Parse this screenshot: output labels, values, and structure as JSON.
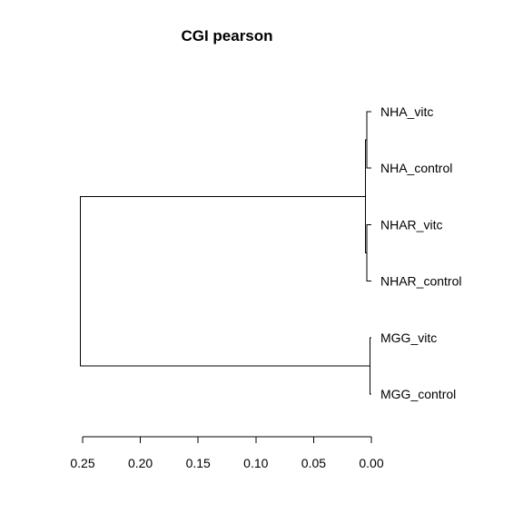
{
  "chart_data": {
    "type": "dendrogram",
    "title": "CGI pearson",
    "orientation": "horizontal",
    "x_axis": {
      "ticks": [
        0.25,
        0.2,
        0.15,
        0.1,
        0.05,
        0.0
      ],
      "tick_labels": [
        "0.25",
        "0.20",
        "0.15",
        "0.10",
        "0.05",
        "0.00"
      ],
      "range": [
        0.25,
        0.0
      ]
    },
    "leaves": [
      "NHA_vitc",
      "NHA_control",
      "NHAR_vitc",
      "NHAR_control",
      "MGG_vitc",
      "MGG_control"
    ],
    "merges": [
      {
        "id": "m1",
        "children": [
          "NHA_vitc",
          "NHA_control"
        ],
        "height": 0.004
      },
      {
        "id": "m2",
        "children": [
          "NHAR_vitc",
          "NHAR_control"
        ],
        "height": 0.004
      },
      {
        "id": "m3",
        "children": [
          "m1",
          "m2"
        ],
        "height": 0.005
      },
      {
        "id": "m4",
        "children": [
          "MGG_vitc",
          "MGG_control"
        ],
        "height": 0.001
      },
      {
        "id": "m5",
        "children": [
          "m3",
          "m4"
        ],
        "height": 0.252
      }
    ]
  }
}
